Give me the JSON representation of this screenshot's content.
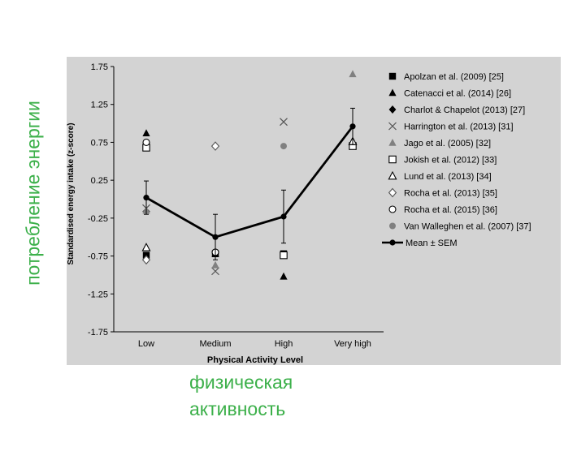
{
  "annotations": {
    "y_overlay": "потребление энергии",
    "x_overlay_line1": "физическая",
    "x_overlay_line2": "активность"
  },
  "chart_data": {
    "type": "scatter",
    "title": "",
    "xlabel": "Physical Activity Level",
    "ylabel": "Standardised energy intake (z-score)",
    "categories": [
      "Low",
      "Medium",
      "High",
      "Very high"
    ],
    "ylim": [
      -1.75,
      1.75
    ],
    "yticks": [
      1.75,
      1.25,
      0.75,
      0.25,
      -0.25,
      -0.75,
      -1.25,
      -1.75
    ],
    "ytick_labels": [
      "1.75",
      "1.25",
      "0.75",
      "0.25",
      "-0.25",
      "-0.75",
      "-1.25",
      "-1.75"
    ],
    "grid": false,
    "legend_position": "right",
    "series": [
      {
        "name": "Apolzan et al. (2009) [25]",
        "marker": "square-filled",
        "color": "#000000",
        "points": [
          {
            "x": "Low",
            "y": -0.74
          },
          {
            "x": "Medium",
            "y": -0.72
          },
          {
            "x": "High",
            "y": -0.72
          }
        ]
      },
      {
        "name": "Catenacci et al. (2014) [26]",
        "marker": "triangle-filled",
        "color": "#000000",
        "points": [
          {
            "x": "Low",
            "y": 0.87
          },
          {
            "x": "Medium",
            "y": -0.72
          },
          {
            "x": "High",
            "y": -1.02
          }
        ]
      },
      {
        "name": "Charlot & Chapelot (2013) [27]",
        "marker": "diamond-filled",
        "color": "#000000",
        "points": [
          {
            "x": "Low",
            "y": 0.7
          }
        ]
      },
      {
        "name": "Harrington et al. (2013) [31]",
        "marker": "cross",
        "color": "#555555",
        "points": [
          {
            "x": "Low",
            "y": -0.12
          },
          {
            "x": "Medium",
            "y": -0.95
          },
          {
            "x": "High",
            "y": 1.02
          }
        ]
      },
      {
        "name": "Jago et al. (2005) [32]",
        "marker": "triangle-filled",
        "color": "#808080",
        "points": [
          {
            "x": "Low",
            "y": -0.15
          },
          {
            "x": "Medium",
            "y": -0.87
          },
          {
            "x": "Very high",
            "y": 1.65
          }
        ]
      },
      {
        "name": "Jokish et al. (2012) [33]",
        "marker": "square-open",
        "color": "#000000",
        "points": [
          {
            "x": "Low",
            "y": 0.68
          },
          {
            "x": "High",
            "y": -0.74
          },
          {
            "x": "Very high",
            "y": 0.7
          }
        ]
      },
      {
        "name": "Lund et al. (2013) [34]",
        "marker": "triangle-open",
        "color": "#000000",
        "points": [
          {
            "x": "Low",
            "y": -0.64
          },
          {
            "x": "Very high",
            "y": 0.76
          }
        ]
      },
      {
        "name": "Rocha et al. (2013) [35]",
        "marker": "diamond-open",
        "color": "#555555",
        "points": [
          {
            "x": "Low",
            "y": -0.8
          },
          {
            "x": "Medium",
            "y": 0.7
          }
        ]
      },
      {
        "name": "Rocha et al. (2015) [36]",
        "marker": "circle-open",
        "color": "#000000",
        "points": [
          {
            "x": "Low",
            "y": 0.75
          },
          {
            "x": "Medium",
            "y": -0.7
          }
        ]
      },
      {
        "name": "Van Walleghen et al. (2007) [37]",
        "marker": "circle-filled",
        "color": "#808080",
        "points": [
          {
            "x": "High",
            "y": 0.7
          }
        ]
      }
    ],
    "mean": {
      "name": "Mean ± SEM",
      "values": [
        0.02,
        -0.5,
        -0.23,
        0.96
      ],
      "sem": [
        0.22,
        0.3,
        0.35,
        0.24
      ]
    }
  }
}
